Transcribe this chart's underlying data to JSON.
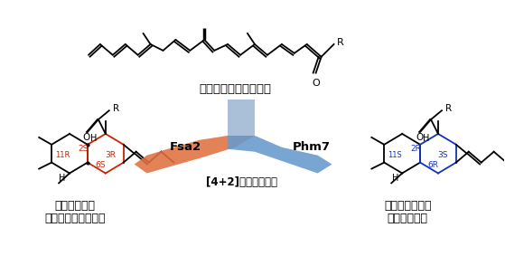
{
  "title": "[4+2]環化付加反応",
  "fsa2_label": "Fsa2",
  "phm7_label": "Phm7",
  "left_label1": "エキセチン型",
  "left_label2": "非天然デカリン骨格",
  "right_label1": "フォマセチン型",
  "right_label2": "デカリン骨格",
  "top_label": "直鎖状ポリエン中間体",
  "background": "#ffffff",
  "ring_red": "#cc2200",
  "ring_blue": "#1133bb",
  "arrow_orange": "#e07040",
  "arrow_blue": "#6699cc",
  "arrow_stem": "#a8c0d8"
}
